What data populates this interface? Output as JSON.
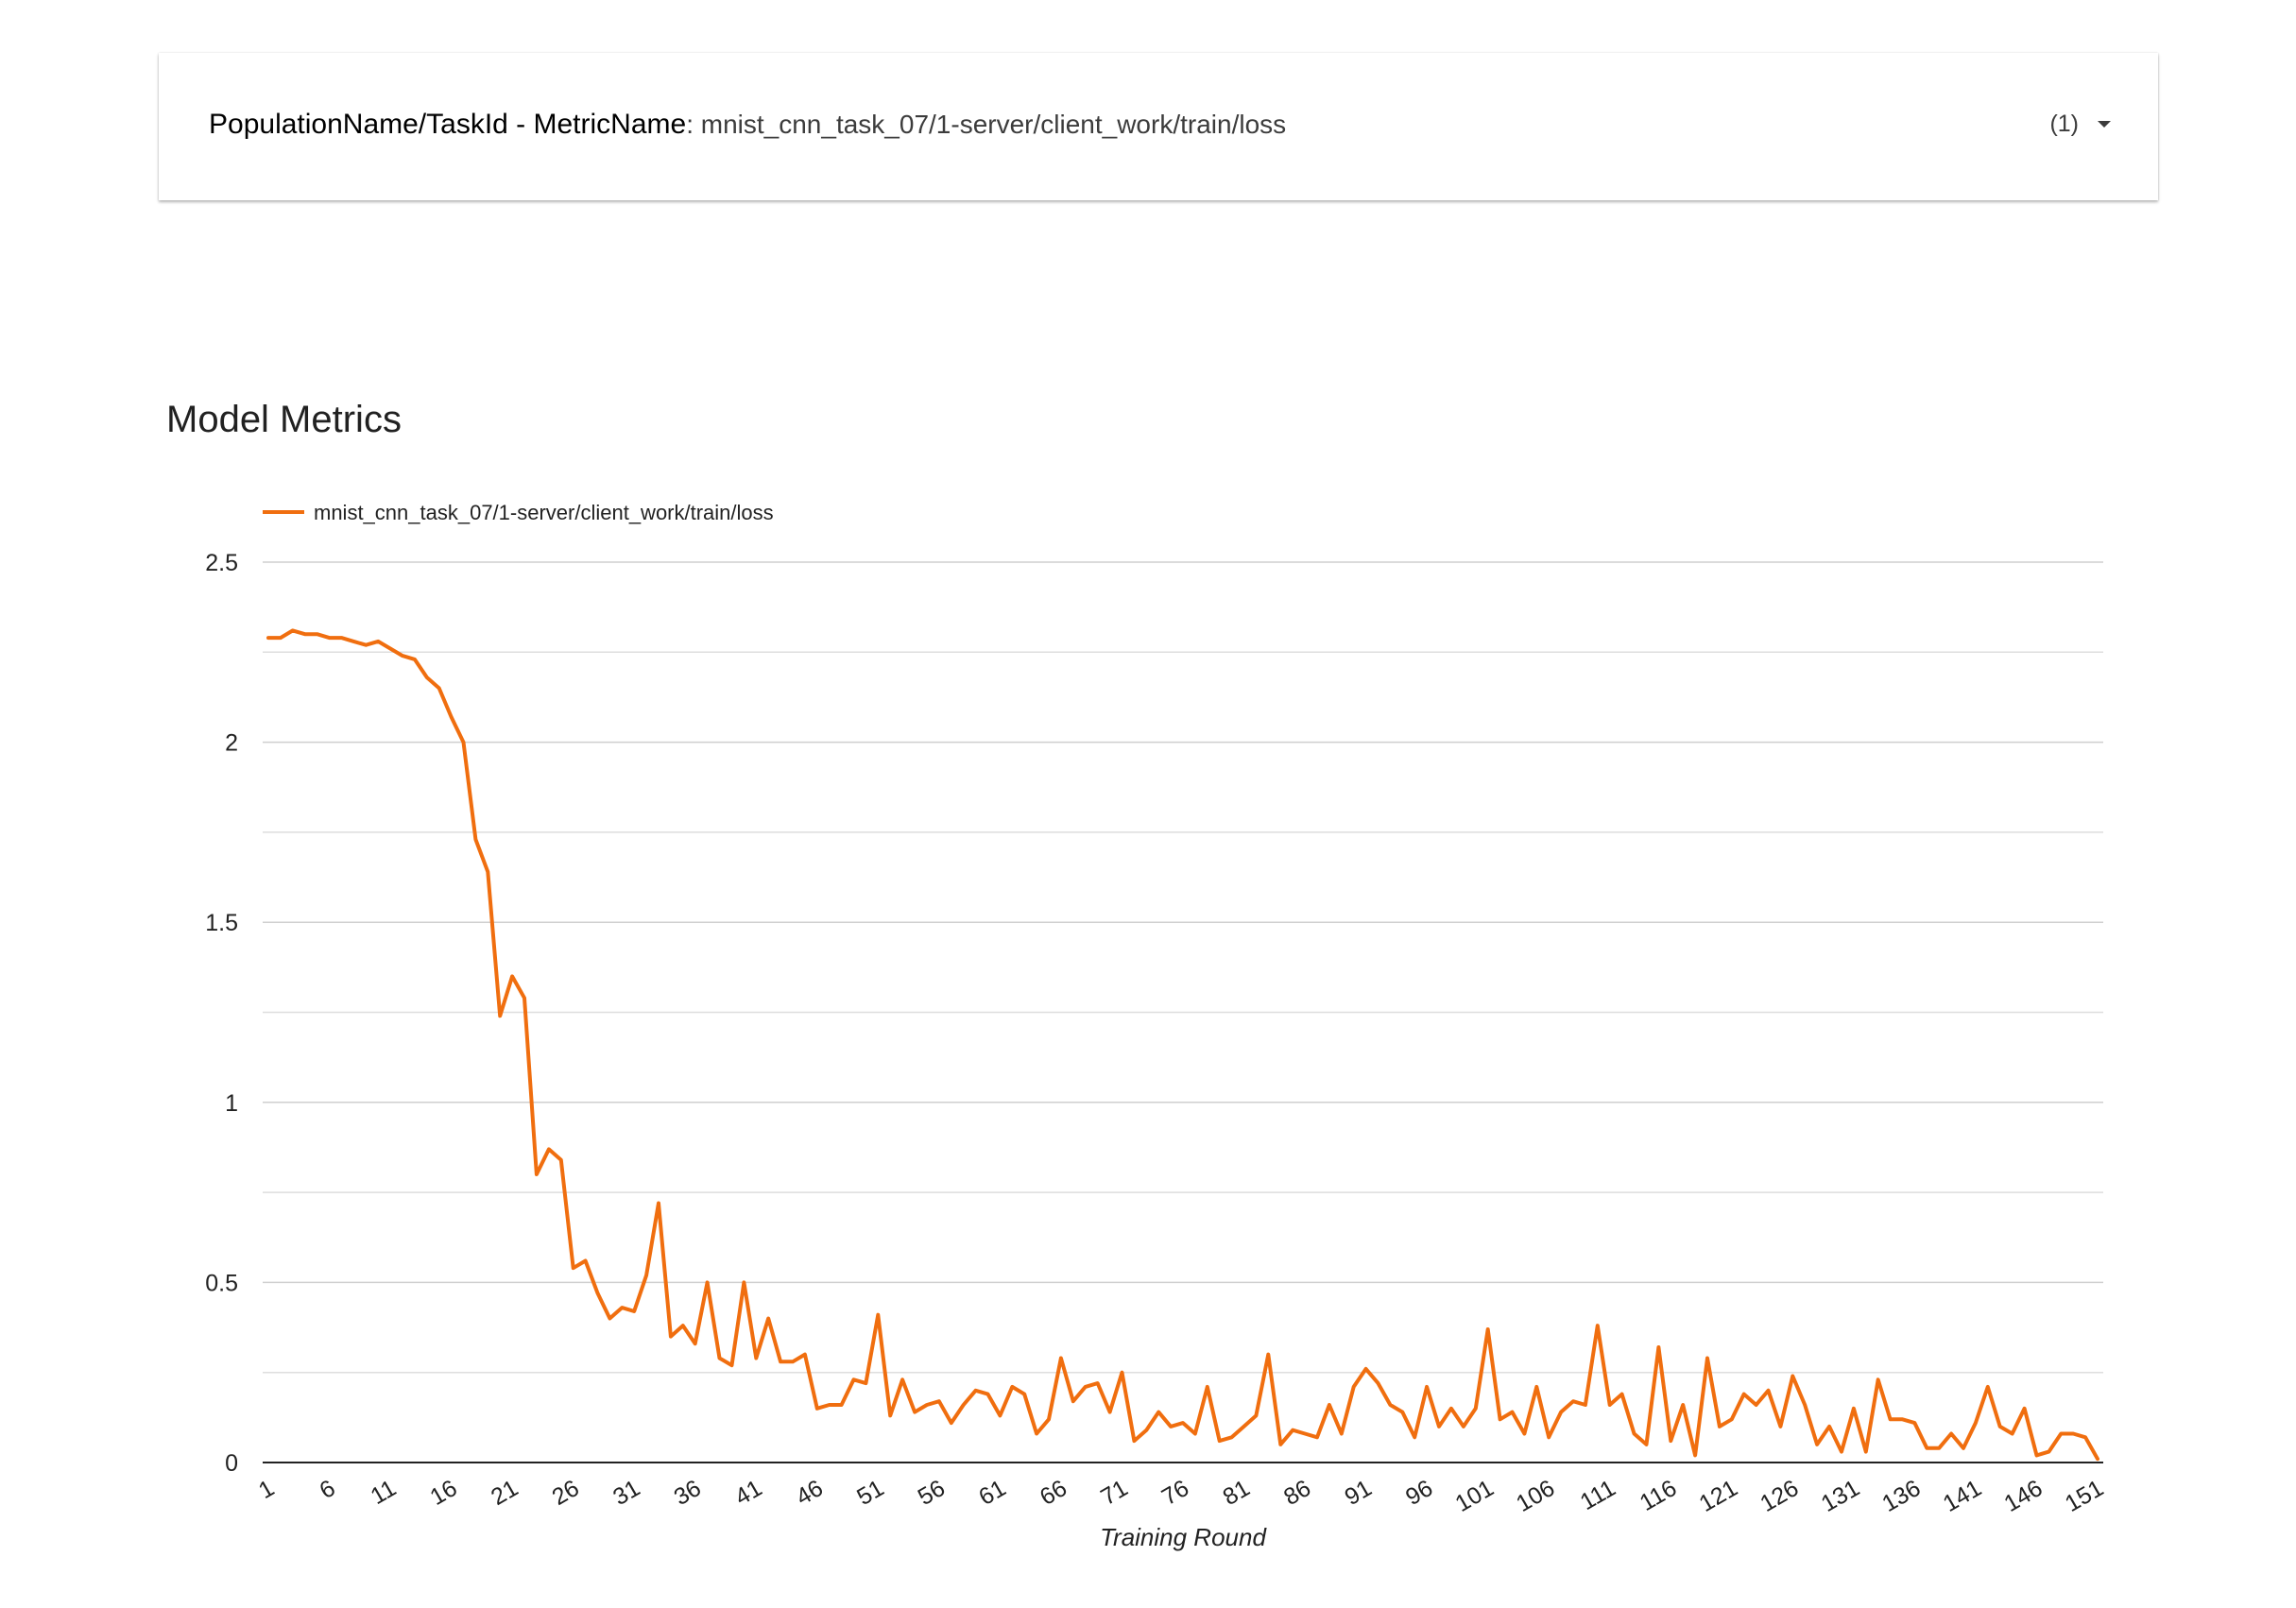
{
  "selector": {
    "label": "PopulationName/TaskId - MetricName",
    "separator": ": ",
    "value": "mnist_cnn_task_07/1-server/client_work/train/loss",
    "count": "(1)",
    "icon": "caret-down-icon"
  },
  "section": {
    "title": "Model Metrics"
  },
  "chart_data": {
    "type": "line",
    "title": "",
    "xlabel": "Training Round",
    "ylabel": "",
    "ylim": [
      0,
      2.5
    ],
    "yticks": [
      "0",
      "0.5",
      "1",
      "1.5",
      "2",
      "2.5"
    ],
    "xticks": [
      "1",
      "6",
      "11",
      "16",
      "21",
      "26",
      "31",
      "36",
      "41",
      "46",
      "51",
      "56",
      "61",
      "66",
      "71",
      "76",
      "81",
      "86",
      "91",
      "96",
      "101",
      "106",
      "111",
      "116",
      "121",
      "126",
      "131",
      "136",
      "141",
      "146",
      "151"
    ],
    "grid": true,
    "legend": "top-left",
    "x_start": 1,
    "series": [
      {
        "name": "mnist_cnn_task_07/1-server/client_work/train/loss",
        "color": "#f06e0f",
        "values": [
          2.29,
          2.29,
          2.31,
          2.3,
          2.3,
          2.29,
          2.29,
          2.28,
          2.27,
          2.28,
          2.26,
          2.24,
          2.23,
          2.18,
          2.15,
          2.07,
          2.0,
          1.73,
          1.64,
          1.24,
          1.35,
          1.29,
          0.8,
          0.87,
          0.84,
          0.54,
          0.56,
          0.47,
          0.4,
          0.43,
          0.42,
          0.52,
          0.72,
          0.35,
          0.38,
          0.33,
          0.5,
          0.29,
          0.27,
          0.5,
          0.29,
          0.4,
          0.28,
          0.28,
          0.3,
          0.15,
          0.16,
          0.16,
          0.23,
          0.22,
          0.41,
          0.13,
          0.23,
          0.14,
          0.16,
          0.17,
          0.11,
          0.16,
          0.2,
          0.19,
          0.13,
          0.21,
          0.19,
          0.08,
          0.12,
          0.29,
          0.17,
          0.21,
          0.22,
          0.14,
          0.25,
          0.06,
          0.09,
          0.14,
          0.1,
          0.11,
          0.08,
          0.21,
          0.06,
          0.07,
          0.1,
          0.13,
          0.3,
          0.05,
          0.09,
          0.08,
          0.07,
          0.16,
          0.08,
          0.21,
          0.26,
          0.22,
          0.16,
          0.14,
          0.07,
          0.21,
          0.1,
          0.15,
          0.1,
          0.15,
          0.37,
          0.12,
          0.14,
          0.08,
          0.21,
          0.07,
          0.14,
          0.17,
          0.16,
          0.38,
          0.16,
          0.19,
          0.08,
          0.05,
          0.32,
          0.06,
          0.16,
          0.02,
          0.29,
          0.1,
          0.12,
          0.19,
          0.16,
          0.2,
          0.1,
          0.24,
          0.16,
          0.05,
          0.1,
          0.03,
          0.15,
          0.03,
          0.23,
          0.12,
          0.12,
          0.11,
          0.04,
          0.04,
          0.08,
          0.04,
          0.11,
          0.21,
          0.1,
          0.08,
          0.15,
          0.02,
          0.03,
          0.08,
          0.08,
          0.07,
          0.01
        ]
      }
    ]
  }
}
